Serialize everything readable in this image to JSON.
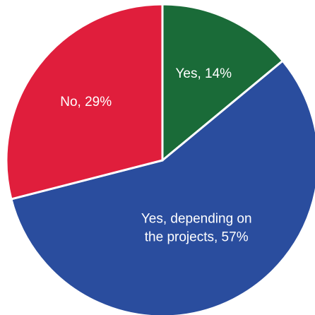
{
  "chart_data": {
    "type": "pie",
    "start_angle_deg": 0,
    "direction": "clockwise",
    "slices": [
      {
        "label": "Yes, 14%",
        "label_lines": [
          "Yes, 14%"
        ],
        "value": 14,
        "color": "#1a6b38"
      },
      {
        "label": "Yes, depending on the projects, 57%",
        "label_lines": [
          "Yes, depending on",
          "the projects, 57%"
        ],
        "value": 57,
        "color": "#2a4d9e"
      },
      {
        "label": "No, 29%",
        "label_lines": [
          "No, 29%"
        ],
        "value": 29,
        "color": "#e01e3c"
      }
    ]
  }
}
